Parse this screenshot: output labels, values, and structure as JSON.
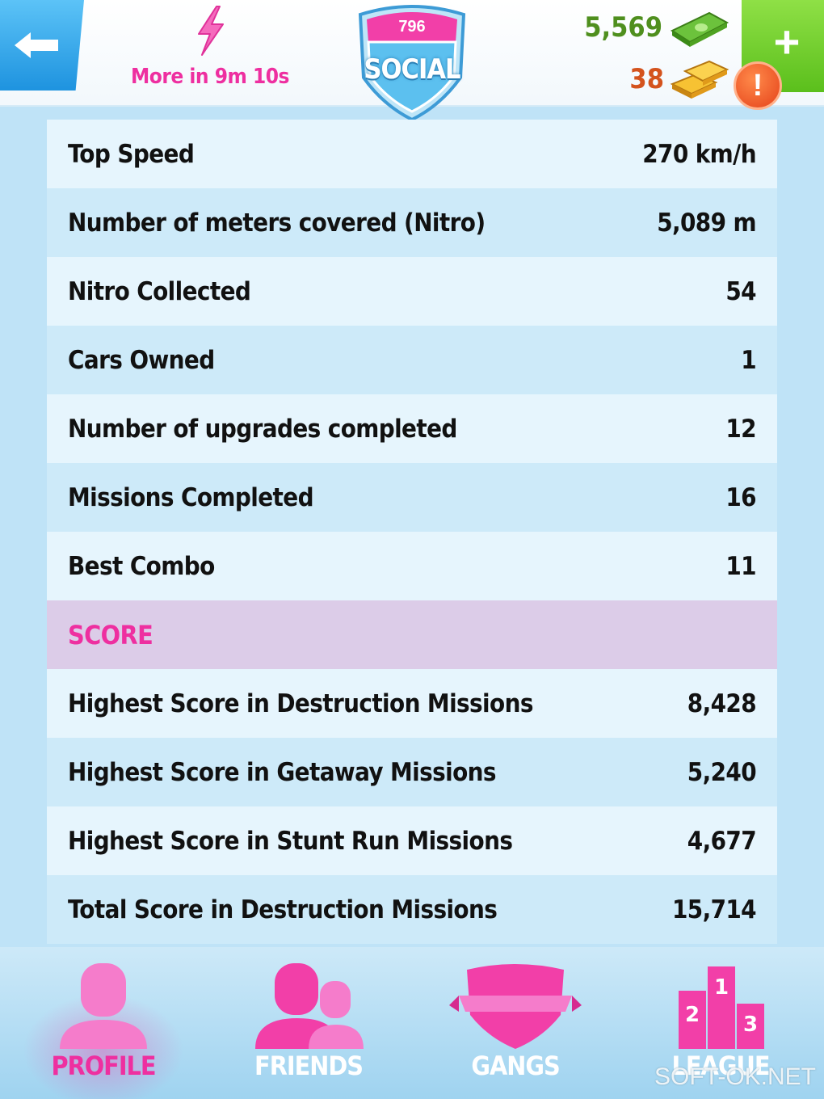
{
  "header": {
    "energy_timer": "More in 9m 10s",
    "level": "796",
    "section_tag": "SOCIAL",
    "cash": "5,569",
    "gold": "38",
    "alert": "!",
    "plus": "+"
  },
  "stats": [
    {
      "label": "Top Speed",
      "value": "270 km/h"
    },
    {
      "label": "Number of meters covered (Nitro)",
      "value": "5,089 m"
    },
    {
      "label": "Nitro Collected",
      "value": "54"
    },
    {
      "label": "Cars Owned",
      "value": "1"
    },
    {
      "label": "Number of upgrades completed",
      "value": "12"
    },
    {
      "label": "Missions Completed",
      "value": "16"
    },
    {
      "label": "Best Combo",
      "value": "11"
    }
  ],
  "score_section": {
    "heading": "SCORE",
    "items": [
      {
        "label": "Highest Score in Destruction Missions",
        "value": "8,428"
      },
      {
        "label": "Highest Score in Getaway Missions",
        "value": "5,240"
      },
      {
        "label": "Highest Score in Stunt Run Missions",
        "value": "4,677"
      },
      {
        "label": "Total Score in Destruction Missions",
        "value": "15,714"
      }
    ]
  },
  "nav": {
    "profile": "PROFILE",
    "friends": "FRIENDS",
    "gangs": "GANGS",
    "league": "LEAGUE",
    "league_ranks": [
      "1",
      "2",
      "3"
    ]
  },
  "watermark": "SOFT-OK.NET",
  "colors": {
    "accent_pink": "#ee2fa0",
    "cash_green": "#4f8f1e",
    "gold_orange": "#d4531d",
    "back_blue": "#1e93df",
    "plus_green": "#5bbf1c"
  }
}
